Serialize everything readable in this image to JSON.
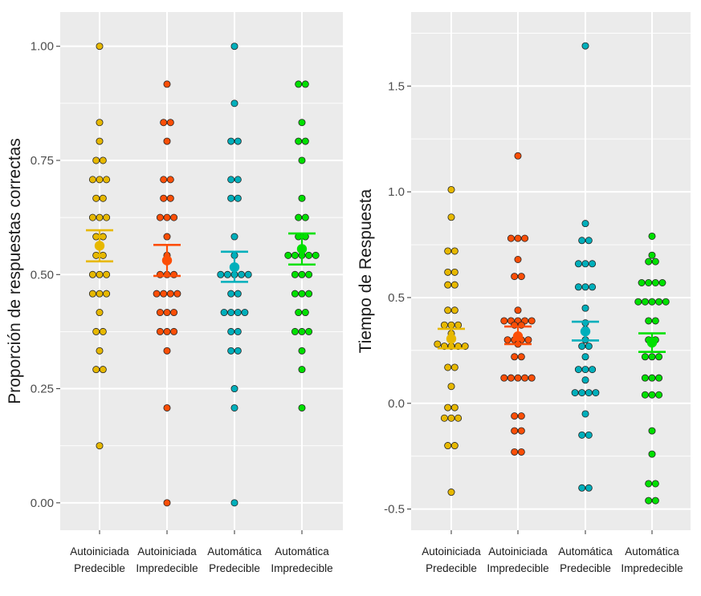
{
  "colors": {
    "panel_background": "#EBEBEB",
    "grid": "#FFFFFF",
    "tick": "#333333",
    "point_outline": "#222222",
    "categories": [
      "#E7B800",
      "#FC4E07",
      "#00AFBB",
      "#00E000"
    ]
  },
  "chart_data": [
    {
      "type": "scatter",
      "subtype": "dotplot-with-mean-and-standard-error",
      "title": "",
      "xlabel": "",
      "ylabel": "Proporción de respuestas correctas",
      "ylim": [
        -0.06,
        1.075
      ],
      "y_ticks": [
        0.0,
        0.25,
        0.5,
        0.75,
        1.0
      ],
      "y_tick_labels": [
        "0.00",
        "0.25",
        "0.50",
        "0.75",
        "1.00"
      ],
      "categories": [
        {
          "line1": "Autoiniciada",
          "line2": "Predecible"
        },
        {
          "line1": "Autoiniciada",
          "line2": "Impredecible"
        },
        {
          "line1": "Automática",
          "line2": "Predecible"
        },
        {
          "line1": "Automática",
          "line2": "Impredecible"
        }
      ],
      "series": [
        {
          "name": "Autoiniciada Predecible",
          "points": [
            1.0,
            0.833,
            0.792,
            0.75,
            0.75,
            0.708,
            0.708,
            0.708,
            0.667,
            0.667,
            0.625,
            0.625,
            0.625,
            0.583,
            0.583,
            0.542,
            0.542,
            0.5,
            0.5,
            0.5,
            0.458,
            0.458,
            0.458,
            0.417,
            0.375,
            0.375,
            0.333,
            0.292,
            0.292,
            0.125
          ],
          "mean": 0.563,
          "se_low": 0.529,
          "se_high": 0.597
        },
        {
          "name": "Autoiniciada Impredecible",
          "points": [
            0.917,
            0.833,
            0.833,
            0.792,
            0.708,
            0.708,
            0.667,
            0.667,
            0.625,
            0.625,
            0.625,
            0.583,
            0.542,
            0.5,
            0.5,
            0.5,
            0.458,
            0.458,
            0.458,
            0.458,
            0.417,
            0.417,
            0.417,
            0.375,
            0.375,
            0.375,
            0.333,
            0.208,
            0.0
          ],
          "mean": 0.531,
          "se_low": 0.497,
          "se_high": 0.565
        },
        {
          "name": "Automática Predecible",
          "points": [
            1.0,
            0.875,
            0.792,
            0.792,
            0.708,
            0.708,
            0.667,
            0.667,
            0.583,
            0.542,
            0.5,
            0.5,
            0.5,
            0.5,
            0.5,
            0.458,
            0.458,
            0.417,
            0.417,
            0.417,
            0.417,
            0.375,
            0.375,
            0.333,
            0.333,
            0.25,
            0.208,
            0.0
          ],
          "mean": 0.516,
          "se_low": 0.484,
          "se_high": 0.55
        },
        {
          "name": "Automática Impredecible",
          "points": [
            0.917,
            0.917,
            0.833,
            0.792,
            0.792,
            0.75,
            0.667,
            0.625,
            0.625,
            0.583,
            0.583,
            0.542,
            0.542,
            0.542,
            0.542,
            0.542,
            0.5,
            0.5,
            0.5,
            0.458,
            0.458,
            0.458,
            0.417,
            0.417,
            0.375,
            0.375,
            0.375,
            0.333,
            0.292,
            0.208
          ],
          "mean": 0.556,
          "se_low": 0.522,
          "se_high": 0.59
        }
      ]
    },
    {
      "type": "scatter",
      "subtype": "dotplot-with-mean-and-standard-error",
      "title": "",
      "xlabel": "",
      "ylabel": "Tiempo de Respuesta",
      "ylim": [
        -0.6,
        1.85
      ],
      "y_ticks": [
        -0.5,
        0.0,
        0.5,
        1.0,
        1.5
      ],
      "y_tick_labels": [
        "-0.5",
        "0.0",
        "0.5",
        "1.0",
        "1.5"
      ],
      "categories": [
        {
          "line1": "Autoiniciada",
          "line2": "Predecible"
        },
        {
          "line1": "Autoiniciada",
          "line2": "Impredecible"
        },
        {
          "line1": "Automática",
          "line2": "Predecible"
        },
        {
          "line1": "Automática",
          "line2": "Impredecible"
        }
      ],
      "series": [
        {
          "name": "Autoiniciada Predecible",
          "points": [
            1.01,
            0.88,
            0.72,
            0.72,
            0.62,
            0.62,
            0.56,
            0.56,
            0.44,
            0.44,
            0.37,
            0.37,
            0.37,
            0.33,
            0.28,
            0.27,
            0.27,
            0.27,
            0.27,
            0.17,
            0.17,
            0.08,
            -0.02,
            -0.02,
            -0.07,
            -0.07,
            -0.07,
            -0.2,
            -0.2,
            -0.42
          ],
          "mean": 0.305,
          "se_low": 0.26,
          "se_high": 0.352
        },
        {
          "name": "Autoiniciada Impredecible",
          "points": [
            1.17,
            0.78,
            0.78,
            0.78,
            0.68,
            0.6,
            0.6,
            0.44,
            0.39,
            0.39,
            0.39,
            0.39,
            0.39,
            0.37,
            0.37,
            0.3,
            0.3,
            0.3,
            0.3,
            0.28,
            0.22,
            0.22,
            0.12,
            0.12,
            0.12,
            0.12,
            0.12,
            -0.06,
            -0.06,
            -0.13,
            -0.13,
            -0.23,
            -0.23
          ],
          "mean": 0.317,
          "se_low": 0.28,
          "se_high": 0.363
        },
        {
          "name": "Automática Predecible",
          "points": [
            1.69,
            0.85,
            0.77,
            0.77,
            0.66,
            0.66,
            0.66,
            0.55,
            0.55,
            0.55,
            0.45,
            0.38,
            0.35,
            0.3,
            0.27,
            0.27,
            0.22,
            0.16,
            0.16,
            0.16,
            0.11,
            0.05,
            0.05,
            0.05,
            0.05,
            -0.05,
            -0.15,
            -0.15,
            -0.4,
            -0.4
          ],
          "mean": 0.34,
          "se_low": 0.297,
          "se_high": 0.386
        },
        {
          "name": "Automática Impredecible",
          "points": [
            0.79,
            0.7,
            0.67,
            0.67,
            0.57,
            0.57,
            0.57,
            0.57,
            0.48,
            0.48,
            0.48,
            0.48,
            0.48,
            0.39,
            0.39,
            0.3,
            0.3,
            0.22,
            0.22,
            0.22,
            0.12,
            0.12,
            0.12,
            0.04,
            0.04,
            0.04,
            -0.13,
            -0.24,
            -0.38,
            -0.38,
            -0.46,
            -0.46
          ],
          "mean": 0.287,
          "se_low": 0.243,
          "se_high": 0.331
        }
      ]
    }
  ]
}
